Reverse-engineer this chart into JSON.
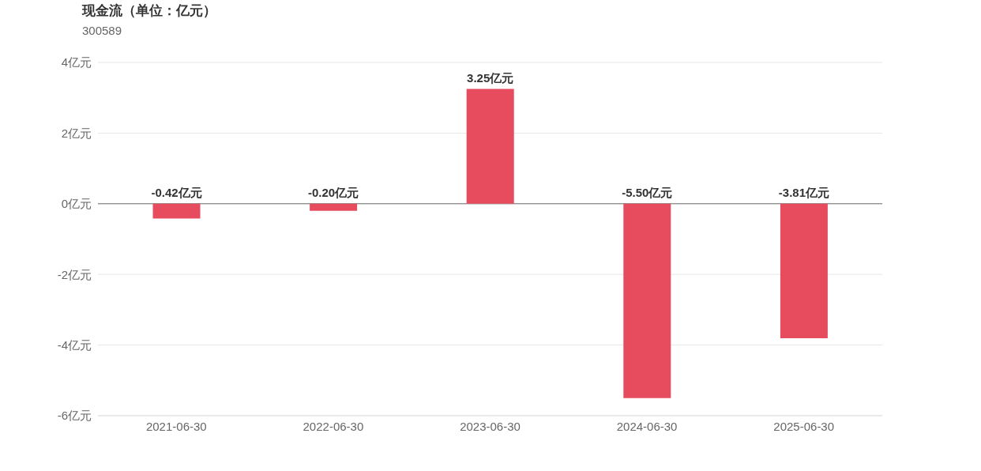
{
  "chart_data": {
    "type": "bar",
    "title": "现金流（单位：亿元）",
    "subtitle": "300589",
    "categories": [
      "2021-06-30",
      "2022-06-30",
      "2023-06-30",
      "2024-06-30",
      "2025-06-30"
    ],
    "values": [
      -0.42,
      -0.2,
      3.25,
      -5.5,
      -3.81
    ],
    "color": "#e64c5e",
    "value_labels": [
      "-0.42亿元",
      "-0.20亿元",
      "3.25亿元",
      "-5.50亿元",
      "-3.81亿元"
    ],
    "ylim": [
      -6,
      4
    ],
    "yticks": [
      {
        "value": -6,
        "label": "-6亿元"
      },
      {
        "value": -4,
        "label": "-4亿元"
      },
      {
        "value": -2,
        "label": "-2亿元"
      },
      {
        "value": 0,
        "label": "0亿元"
      },
      {
        "value": 2,
        "label": "2亿元"
      },
      {
        "value": 4,
        "label": "4亿元"
      }
    ],
    "grid": "y",
    "legend": false
  }
}
